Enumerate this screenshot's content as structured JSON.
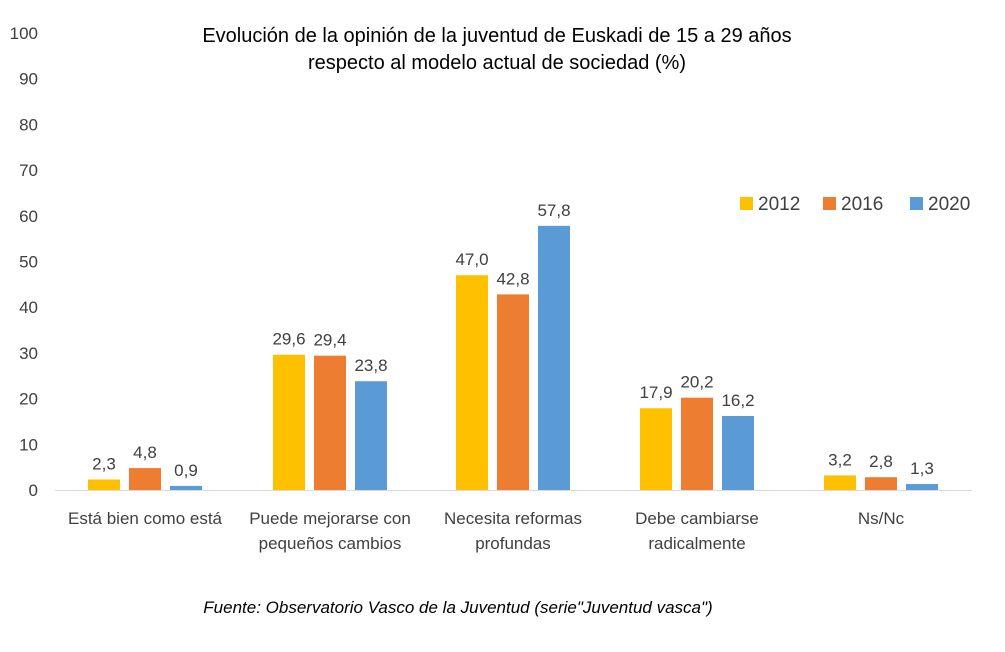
{
  "chart_data": {
    "type": "bar",
    "title": [
      "Evolución de la opinión de la juventud de Euskadi de 15 a 29 años",
      "respecto al modelo actual de sociedad (%)"
    ],
    "categories": [
      [
        "Está bien como está"
      ],
      [
        "Puede mejorarse con",
        "pequeños cambios"
      ],
      [
        "Necesita reformas",
        "profundas"
      ],
      [
        "Debe cambiarse",
        "radicalmente"
      ],
      [
        "Ns/Nc"
      ]
    ],
    "series": [
      {
        "name": "2012",
        "color": "#FFC000",
        "values": [
          2.3,
          29.6,
          47.0,
          17.9,
          3.2
        ],
        "labels": [
          "2,3",
          "29,6",
          "47,0",
          "17,9",
          "3,2"
        ]
      },
      {
        "name": "2016",
        "color": "#ED7D31",
        "values": [
          4.8,
          29.4,
          42.8,
          20.2,
          2.8
        ],
        "labels": [
          "4,8",
          "29,4",
          "42,8",
          "20,2",
          "2,8"
        ]
      },
      {
        "name": "2020",
        "color": "#5B9BD5",
        "values": [
          0.9,
          23.8,
          57.8,
          16.2,
          1.3
        ],
        "labels": [
          "0,9",
          "23,8",
          "57,8",
          "16,2",
          "1,3"
        ]
      }
    ],
    "ylim": [
      0,
      100
    ],
    "yticks": [
      0,
      10,
      20,
      30,
      40,
      50,
      60,
      70,
      80,
      90,
      100
    ],
    "grid": false,
    "legend": "top-right",
    "source": "Fuente: Observatorio Vasco de la Juventud (serie\"Juventud vasca\")"
  }
}
